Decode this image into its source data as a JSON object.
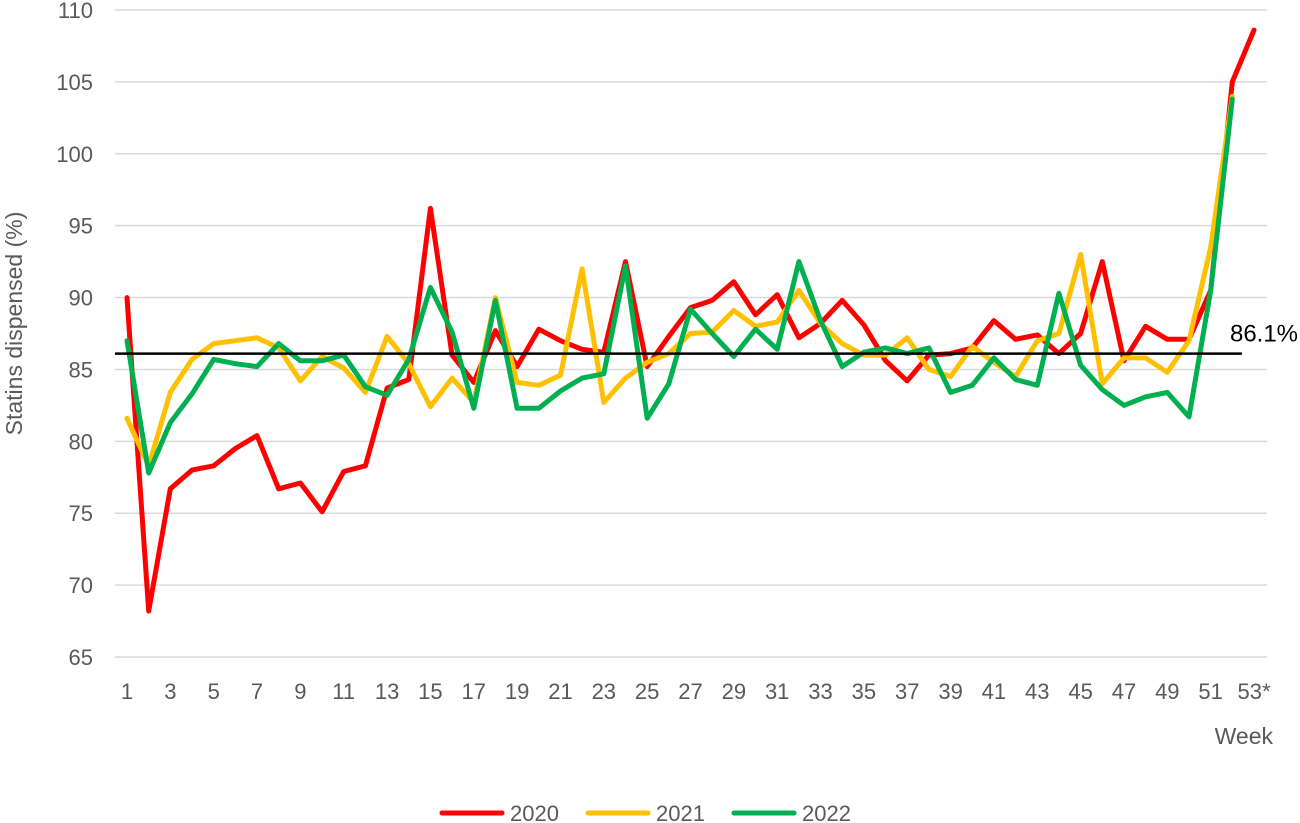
{
  "chart_data": {
    "type": "line",
    "ylabel": "Statins dispensed (%)",
    "xlabel": "Week",
    "ylim": [
      65,
      110
    ],
    "yticks": [
      65,
      70,
      75,
      80,
      85,
      90,
      95,
      100,
      105,
      110
    ],
    "xlim": [
      1,
      53
    ],
    "xtick_labels": [
      "1",
      "3",
      "5",
      "7",
      "9",
      "11",
      "13",
      "15",
      "17",
      "19",
      "21",
      "23",
      "25",
      "27",
      "29",
      "31",
      "33",
      "35",
      "37",
      "39",
      "41",
      "43",
      "45",
      "47",
      "49",
      "51",
      "53*"
    ],
    "grid": "horizontal",
    "legend_position": "bottom",
    "reference_line": {
      "value": 86.1,
      "label": "86.1%",
      "color": "#000000"
    },
    "x": [
      1,
      2,
      3,
      4,
      5,
      6,
      7,
      8,
      9,
      10,
      11,
      12,
      13,
      14,
      15,
      16,
      17,
      18,
      19,
      20,
      21,
      22,
      23,
      24,
      25,
      26,
      27,
      28,
      29,
      30,
      31,
      32,
      33,
      34,
      35,
      36,
      37,
      38,
      39,
      40,
      41,
      42,
      43,
      44,
      45,
      46,
      47,
      48,
      49,
      50,
      51,
      52,
      53
    ],
    "series": [
      {
        "name": "2020",
        "color": "#ff0000",
        "values": [
          90.0,
          68.2,
          76.7,
          78.0,
          78.3,
          79.5,
          80.4,
          76.7,
          77.1,
          75.1,
          77.9,
          78.3,
          83.7,
          84.3,
          96.2,
          86.0,
          84.1,
          87.7,
          85.2,
          87.8,
          87.0,
          86.4,
          86.2,
          92.5,
          85.2,
          87.3,
          89.3,
          89.8,
          91.1,
          88.8,
          90.2,
          87.2,
          88.2,
          89.8,
          88.1,
          85.6,
          84.2,
          86.0,
          86.1,
          86.5,
          88.4,
          87.1,
          87.4,
          86.1,
          87.5,
          92.5,
          85.6,
          88.0,
          87.1,
          87.1,
          90.5,
          105.0,
          108.6
        ]
      },
      {
        "name": "2021",
        "color": "#ffc000",
        "values": [
          81.6,
          78.3,
          83.4,
          85.7,
          86.8,
          87.0,
          87.2,
          86.5,
          84.2,
          85.9,
          85.1,
          83.4,
          87.3,
          85.4,
          82.4,
          84.4,
          82.7,
          90.0,
          84.1,
          83.9,
          84.6,
          92.0,
          82.7,
          84.4,
          85.5,
          86.1,
          87.5,
          87.6,
          89.1,
          88.0,
          88.3,
          90.5,
          88.2,
          86.8,
          86.0,
          86.0,
          87.2,
          85.0,
          84.5,
          86.6,
          85.5,
          84.5,
          87.0,
          87.5,
          93.0,
          84.0,
          85.8,
          85.8,
          84.8,
          87.0,
          93.5,
          104.0,
          null
        ]
      },
      {
        "name": "2022",
        "color": "#00b050",
        "values": [
          87.0,
          77.8,
          81.3,
          83.3,
          85.7,
          85.4,
          85.2,
          86.8,
          85.6,
          85.6,
          86.0,
          83.8,
          83.2,
          85.7,
          90.7,
          87.6,
          82.3,
          89.8,
          82.3,
          82.3,
          83.5,
          84.4,
          84.7,
          92.2,
          81.6,
          84.0,
          89.2,
          87.5,
          85.9,
          87.8,
          86.4,
          92.5,
          88.4,
          85.2,
          86.2,
          86.5,
          86.1,
          86.5,
          83.4,
          83.9,
          85.8,
          84.3,
          83.9,
          90.3,
          85.3,
          83.6,
          82.5,
          83.1,
          83.4,
          81.7,
          90.5,
          103.8,
          null
        ]
      }
    ]
  }
}
